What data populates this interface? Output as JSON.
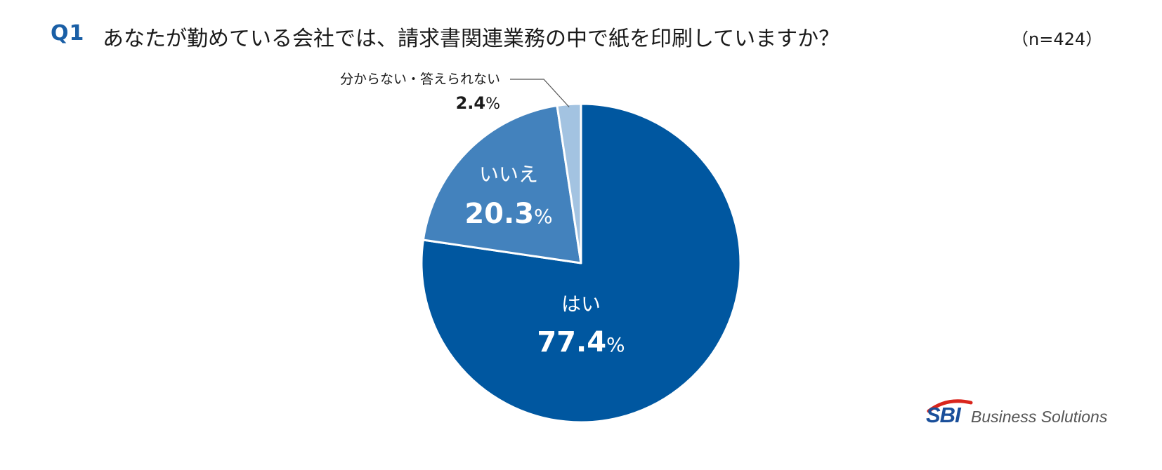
{
  "header": {
    "q_label": "Q1",
    "question": "あなたが勤めている会社では、請求書関連業務の中で紙を印刷していますか？",
    "sample": "（n=424）"
  },
  "chart_data": {
    "type": "pie",
    "title": "あなたが勤めている会社では、請求書関連業務の中で紙を印刷していますか？",
    "slices": [
      {
        "label": "はい",
        "value": 77.4,
        "display": "77.4",
        "unit": "%",
        "color": "#0057a0",
        "label_color": "#ffffff"
      },
      {
        "label": "いいえ",
        "value": 20.3,
        "display": "20.3",
        "unit": "%",
        "color": "#4382bd",
        "label_color": "#ffffff"
      },
      {
        "label": "分からない・答えられない",
        "value": 2.4,
        "display": "2.4",
        "unit": "%",
        "color": "#a3c3e1",
        "label_color": "#1a1a1a"
      }
    ],
    "start": "12 o'clock",
    "direction": "clockwise",
    "slice_border_color": "#ffffff"
  },
  "logo": {
    "mark": "SBI",
    "name": "Business Solutions",
    "arc_color": "#d9251c"
  }
}
